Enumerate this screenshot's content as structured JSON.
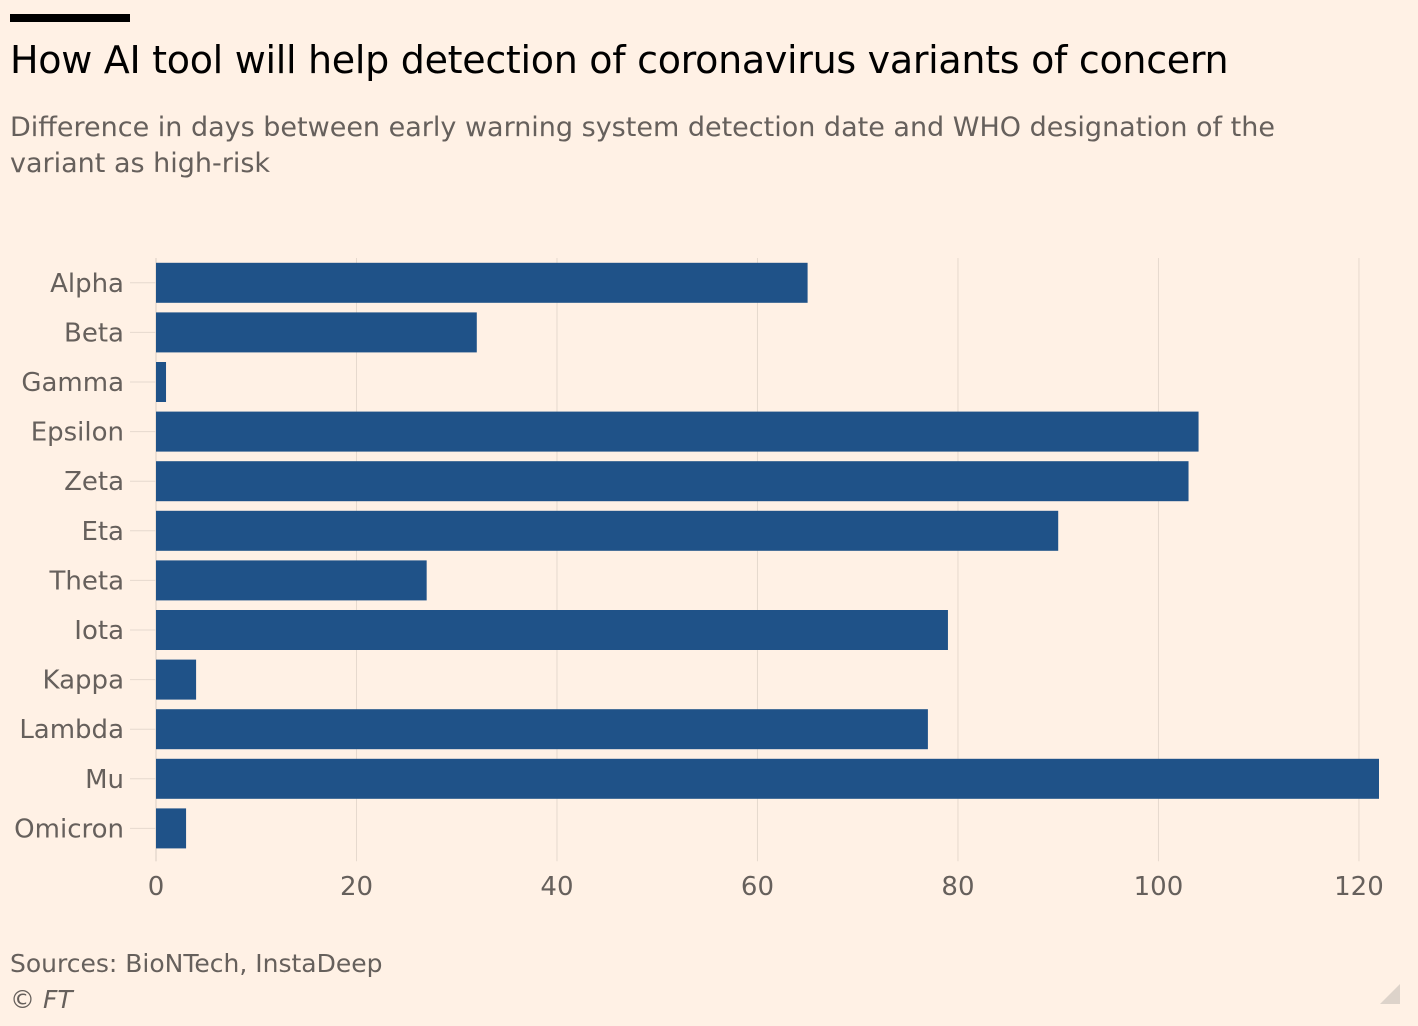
{
  "colors": {
    "background": "#fff1e5",
    "bar": "#1f5288",
    "gridline": "#e6d9ce",
    "axis_text": "#66605c",
    "title_text": "#000000"
  },
  "title": "How AI tool will help detection of coronavirus variants of concern",
  "subtitle": "Difference in days between early warning system detection date and WHO designation of the variant as high-risk",
  "footer": {
    "source": "Sources: BioNTech, InstaDeep",
    "credit": "© FT"
  },
  "chart_data": {
    "type": "bar",
    "orientation": "horizontal",
    "title": "How AI tool will help detection of coronavirus variants of concern",
    "subtitle": "Difference in days between early warning system detection date and WHO designation of the variant as high-risk",
    "categories": [
      "Alpha",
      "Beta",
      "Gamma",
      "Epsilon",
      "Zeta",
      "Eta",
      "Theta",
      "Iota",
      "Kappa",
      "Lambda",
      "Mu",
      "Omicron"
    ],
    "values": [
      65,
      32,
      1,
      104,
      103,
      90,
      27,
      79,
      4,
      77,
      122,
      3
    ],
    "xlabel": "",
    "ylabel": "",
    "xlim": [
      0,
      122
    ],
    "xticks": [
      0,
      20,
      40,
      60,
      80,
      100,
      120
    ],
    "grid": true,
    "legend": "none"
  }
}
